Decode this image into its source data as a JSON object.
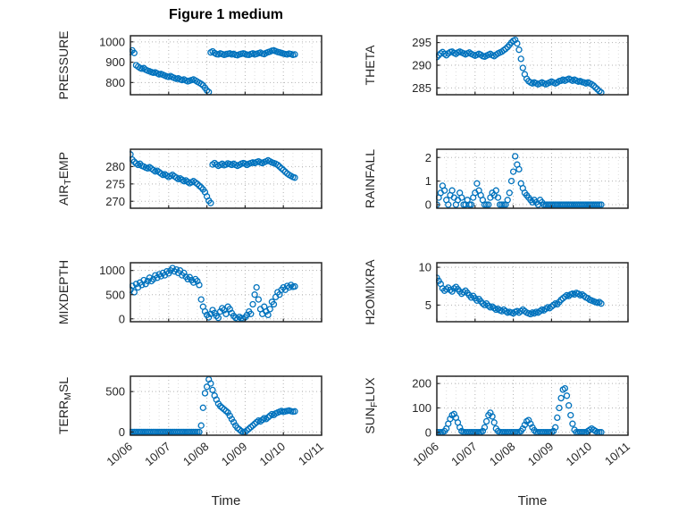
{
  "figure": {
    "title": "Figure 1 medium",
    "accent_color": "#0072BD",
    "axis_color": "#262626",
    "grid_color": "#b3b3b3",
    "grid_minor_color": "#dcdcdc",
    "background": "#ffffff"
  },
  "xaxis": {
    "label": "Time",
    "tick_labels": [
      "10/06",
      "10/07",
      "10/08",
      "10/09",
      "10/10",
      "10/11"
    ],
    "tick_values": [
      0,
      1,
      2,
      3,
      4,
      5
    ],
    "xlim": [
      0,
      5
    ]
  },
  "chart_data": [
    {
      "type": "scatter",
      "name": "PRESSURE",
      "ylabel_parts": [
        {
          "t": "PRESSURE"
        }
      ],
      "yticks": [
        800,
        900,
        1000
      ],
      "ylim": [
        740,
        1030
      ],
      "x0": 0,
      "dx": 0.05,
      "y": [
        950,
        958,
        945,
        885,
        878,
        872,
        868,
        871,
        863,
        858,
        855,
        851,
        848,
        850,
        845,
        840,
        842,
        838,
        834,
        830,
        828,
        832,
        826,
        822,
        818,
        821,
        815,
        812,
        815,
        810,
        806,
        809,
        812,
        815,
        810,
        804,
        799,
        793,
        786,
        774,
        761,
        753,
        948,
        953,
        945,
        940,
        938,
        943,
        940,
        936,
        939,
        941,
        943,
        938,
        941,
        936,
        934,
        938,
        941,
        943,
        940,
        937,
        936,
        940,
        943,
        938,
        941,
        944,
        947,
        942,
        940,
        945,
        949,
        952,
        956,
        958,
        954,
        950,
        948,
        945,
        942,
        940,
        938,
        942,
        940,
        936,
        938
      ]
    },
    {
      "type": "scatter",
      "name": "THETA",
      "ylabel_parts": [
        {
          "t": "THETA"
        }
      ],
      "yticks": [
        285,
        290,
        295
      ],
      "ylim": [
        283.5,
        296.5
      ],
      "x0": 0,
      "dx": 0.05,
      "y": [
        291.8,
        292.2,
        292.6,
        292.9,
        292.5,
        292.2,
        292.6,
        292.9,
        293.0,
        292.7,
        292.5,
        292.8,
        293.0,
        292.8,
        292.6,
        292.4,
        292.6,
        292.8,
        292.5,
        292.3,
        292.1,
        292.3,
        292.5,
        292.3,
        292.0,
        291.9,
        292.1,
        292.3,
        292.5,
        292.2,
        292.0,
        292.3,
        292.6,
        292.8,
        293.0,
        293.3,
        293.6,
        294.0,
        294.5,
        295.0,
        295.4,
        295.6,
        294.8,
        293.4,
        291.4,
        289.4,
        288.0,
        287.0,
        286.5,
        286.2,
        286.0,
        286.2,
        286.0,
        285.8,
        286.0,
        286.2,
        286.0,
        285.8,
        286.0,
        286.2,
        286.4,
        286.2,
        286.0,
        286.2,
        286.5,
        286.6,
        286.8,
        286.6,
        286.8,
        287.0,
        286.8,
        286.6,
        286.8,
        286.6,
        286.4,
        286.5,
        286.3,
        286.2,
        286.0,
        286.2,
        286.0,
        285.8,
        285.5,
        285.1,
        284.7,
        284.3,
        284.0
      ]
    },
    {
      "type": "scatter",
      "name": "AIR_TEMP",
      "ylabel_parts": [
        {
          "t": "AIR"
        },
        {
          "t": "T",
          "sub": true
        },
        {
          "t": "EMP"
        }
      ],
      "yticks": [
        270,
        275,
        280
      ],
      "ylim": [
        268,
        285
      ],
      "x0": 0,
      "dx": 0.05,
      "y": [
        283.5,
        282.0,
        281.4,
        280.9,
        280.5,
        280.8,
        280.2,
        280.0,
        279.7,
        279.5,
        279.8,
        279.4,
        279.0,
        278.6,
        278.8,
        278.4,
        278.0,
        277.6,
        277.8,
        277.4,
        277.0,
        277.3,
        277.6,
        277.2,
        276.8,
        276.4,
        276.6,
        276.2,
        275.8,
        276.0,
        275.6,
        275.2,
        275.5,
        275.8,
        275.4,
        275.0,
        274.5,
        274.0,
        273.4,
        272.6,
        271.4,
        270.2,
        269.5,
        280.6,
        281.0,
        280.6,
        280.2,
        280.5,
        280.8,
        280.4,
        280.6,
        280.9,
        280.7,
        280.5,
        280.8,
        280.5,
        280.2,
        280.5,
        280.8,
        281.0,
        280.8,
        280.5,
        280.8,
        281.0,
        281.2,
        281.0,
        281.3,
        281.5,
        281.2,
        281.0,
        281.3,
        281.5,
        281.8,
        281.5,
        281.2,
        281.0,
        280.8,
        280.5,
        280.0,
        279.5,
        279.0,
        278.5,
        278.0,
        277.6,
        277.3,
        277.0,
        276.8
      ]
    },
    {
      "type": "scatter",
      "name": "RAINFALL",
      "ylabel_parts": [
        {
          "t": "RAINFALL"
        }
      ],
      "yticks": [
        0,
        1,
        2
      ],
      "ylim": [
        -0.15,
        2.35
      ],
      "x0": 0,
      "dx": 0.05,
      "y": [
        0.0,
        0.3,
        0.5,
        0.8,
        0.6,
        0.2,
        0.0,
        0.4,
        0.6,
        0.3,
        0.0,
        0.2,
        0.5,
        0.3,
        0.0,
        0.0,
        0.2,
        0.0,
        0.0,
        0.3,
        0.5,
        0.9,
        0.6,
        0.4,
        0.2,
        0.0,
        0.0,
        0.0,
        0.3,
        0.5,
        0.4,
        0.6,
        0.3,
        0.0,
        0.0,
        0.0,
        0.0,
        0.2,
        0.5,
        1.0,
        1.4,
        2.05,
        1.7,
        1.5,
        0.9,
        0.7,
        0.5,
        0.4,
        0.3,
        0.2,
        0.1,
        0.2,
        0.1,
        0.0,
        0.2,
        0.1,
        0.0,
        0.0,
        0.0,
        0.0,
        0.0,
        0.0,
        0.0,
        0.0,
        0.0,
        0.0,
        0.0,
        0.0,
        0.0,
        0.0,
        0.0,
        0.0,
        0.0,
        0.0,
        0.0,
        0.0,
        0.0,
        0.0,
        0.0,
        0.0,
        0.0,
        0.0,
        0.0,
        0.0,
        0.0,
        0.0,
        0.0
      ]
    },
    {
      "type": "scatter",
      "name": "MIXDEPTH",
      "ylabel_parts": [
        {
          "t": "MIXDEPTH"
        }
      ],
      "yticks": [
        0,
        500,
        1000
      ],
      "ylim": [
        -60,
        1160
      ],
      "x0": 0,
      "dx": 0.05,
      "y": [
        600,
        680,
        550,
        720,
        650,
        750,
        700,
        800,
        720,
        780,
        850,
        780,
        820,
        900,
        850,
        920,
        880,
        950,
        900,
        980,
        940,
        1000,
        1050,
        980,
        1020,
        950,
        1000,
        900,
        950,
        870,
        820,
        860,
        800,
        750,
        820,
        780,
        700,
        400,
        250,
        150,
        80,
        30,
        100,
        180,
        120,
        60,
        20,
        150,
        220,
        180,
        100,
        250,
        200,
        120,
        60,
        20,
        0,
        40,
        10,
        0,
        30,
        80,
        150,
        100,
        300,
        500,
        650,
        400,
        200,
        100,
        250,
        150,
        80,
        200,
        350,
        300,
        450,
        550,
        500,
        600,
        650,
        600,
        680,
        650,
        700,
        660,
        670
      ]
    },
    {
      "type": "scatter",
      "name": "H2OMIXRA",
      "ylabel_parts": [
        {
          "t": "H2OMIXRA"
        }
      ],
      "yticks": [
        5,
        10
      ],
      "ylim": [
        2.8,
        10.6
      ],
      "x0": 0,
      "dx": 0.05,
      "y": [
        8.6,
        8.2,
        7.8,
        7.2,
        6.9,
        7.1,
        7.3,
        7.0,
        6.8,
        7.2,
        7.4,
        7.1,
        6.8,
        6.5,
        6.7,
        6.9,
        6.6,
        6.3,
        6.0,
        6.2,
        5.9,
        5.6,
        5.8,
        5.5,
        5.2,
        5.0,
        5.2,
        4.9,
        4.7,
        4.8,
        4.6,
        4.4,
        4.5,
        4.3,
        4.2,
        4.4,
        4.2,
        4.0,
        4.1,
        4.0,
        3.9,
        4.1,
        4.2,
        4.0,
        4.2,
        4.4,
        4.2,
        4.0,
        3.9,
        3.8,
        4.0,
        3.9,
        4.1,
        4.0,
        4.2,
        4.4,
        4.3,
        4.5,
        4.7,
        4.6,
        4.8,
        5.0,
        5.2,
        5.1,
        5.4,
        5.7,
        5.9,
        6.1,
        6.3,
        6.2,
        6.4,
        6.5,
        6.4,
        6.6,
        6.5,
        6.3,
        6.4,
        6.2,
        6.0,
        5.9,
        5.7,
        5.6,
        5.5,
        5.4,
        5.3,
        5.4,
        5.2
      ]
    },
    {
      "type": "scatter",
      "name": "TERR_MSL",
      "ylabel_parts": [
        {
          "t": "TERR"
        },
        {
          "t": "M",
          "sub": true
        },
        {
          "t": "SL"
        }
      ],
      "yticks": [
        0,
        500
      ],
      "ylim": [
        -40,
        690
      ],
      "x0": 0,
      "dx": 0.05,
      "y": [
        0,
        0,
        0,
        0,
        0,
        0,
        0,
        0,
        0,
        0,
        0,
        0,
        0,
        0,
        0,
        0,
        0,
        0,
        0,
        0,
        0,
        0,
        0,
        0,
        0,
        0,
        0,
        0,
        0,
        0,
        0,
        0,
        0,
        0,
        0,
        0,
        0,
        80,
        300,
        480,
        560,
        650,
        600,
        520,
        450,
        400,
        350,
        320,
        300,
        280,
        260,
        240,
        200,
        160,
        120,
        80,
        50,
        30,
        10,
        0,
        0,
        20,
        40,
        60,
        80,
        100,
        120,
        140,
        130,
        150,
        170,
        160,
        180,
        200,
        220,
        210,
        230,
        240,
        250,
        260,
        250,
        255,
        260,
        265,
        258,
        252,
        255
      ]
    },
    {
      "type": "scatter",
      "name": "SUN_FLUX",
      "ylabel_parts": [
        {
          "t": "SUN"
        },
        {
          "t": "F",
          "sub": true
        },
        {
          "t": "LUX"
        }
      ],
      "yticks": [
        0,
        100,
        200
      ],
      "ylim": [
        -12,
        230
      ],
      "x0": 0,
      "dx": 0.05,
      "y": [
        0,
        0,
        0,
        0,
        5,
        15,
        35,
        55,
        70,
        75,
        60,
        40,
        20,
        5,
        0,
        0,
        0,
        0,
        0,
        0,
        0,
        0,
        0,
        0,
        5,
        20,
        45,
        70,
        80,
        65,
        40,
        15,
        5,
        0,
        0,
        0,
        0,
        0,
        0,
        0,
        0,
        0,
        0,
        0,
        5,
        15,
        30,
        45,
        50,
        35,
        20,
        8,
        0,
        0,
        0,
        0,
        0,
        0,
        0,
        0,
        0,
        5,
        20,
        60,
        100,
        140,
        175,
        180,
        150,
        110,
        70,
        35,
        10,
        0,
        0,
        0,
        0,
        0,
        0,
        5,
        10,
        15,
        10,
        5,
        0,
        0,
        0
      ]
    }
  ]
}
